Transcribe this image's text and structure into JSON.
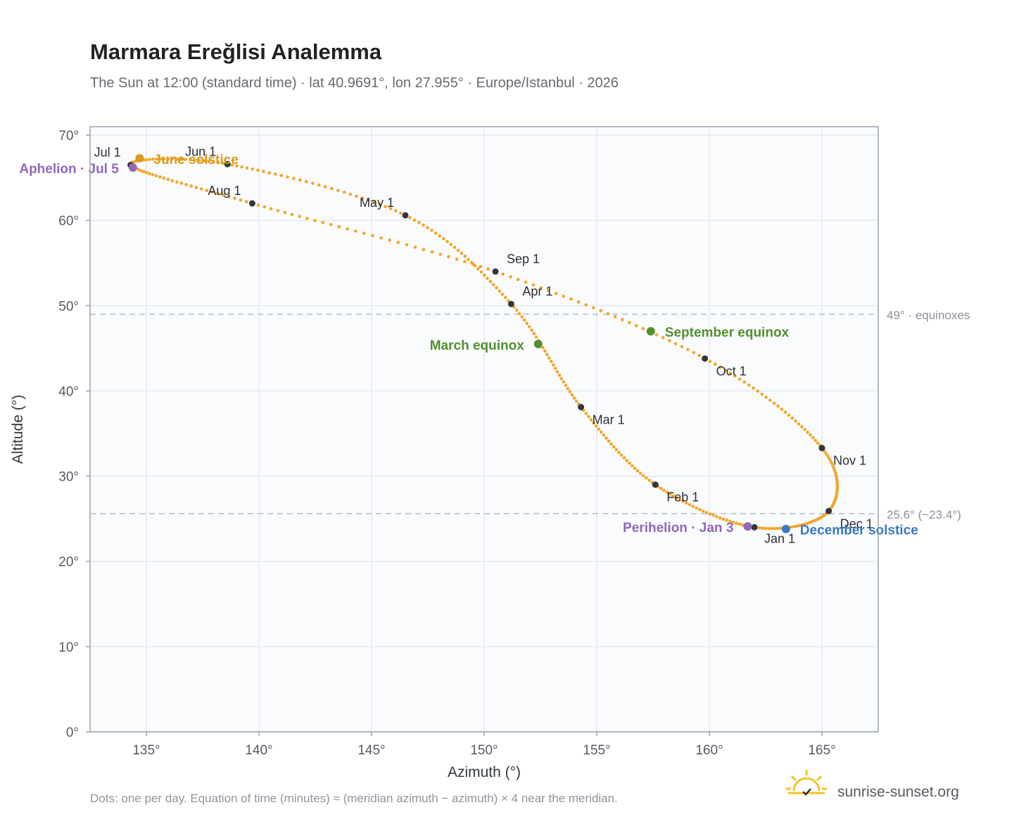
{
  "title": "Marmara Ereğlisi Analemma",
  "subtitle": "The Sun at 12:00 (standard time) · lat 40.9691°, lon 27.955° · Europe/Istanbul · 2026",
  "footnote": "Dots: one per day. Equation of time (minutes) ≈ (meridian azimuth − azimuth) × 4 near the meridian.",
  "brand": {
    "name": "sunrise-sunset.org",
    "icon": "sun-logo-icon"
  },
  "colors": {
    "path": "#f2a62a",
    "month": "#33363c",
    "june": "#dd9a1c",
    "december": "#3a78c0",
    "equinox": "#538f2e",
    "apsis": "#9267b8",
    "refline": "#b6bdc6",
    "grid": "#e6eaf0",
    "plot_bg": "#f9fbfd",
    "frame": "#9aa3ae"
  },
  "chart_data": {
    "type": "scatter",
    "title": "Marmara Ereğlisi Analemma",
    "xlabel": "Azimuth (°)",
    "ylabel": "Altitude (°)",
    "xlim": [
      132.5,
      167.5
    ],
    "ylim": [
      0,
      71
    ],
    "grid": true,
    "x_ticks": [
      135,
      140,
      145,
      150,
      155,
      160,
      165
    ],
    "x_tick_labels": [
      "135°",
      "140°",
      "145°",
      "150°",
      "155°",
      "160°",
      "165°"
    ],
    "y_ticks": [
      0,
      10,
      20,
      30,
      40,
      50,
      60,
      70
    ],
    "y_tick_labels": [
      "0°",
      "10°",
      "20°",
      "30°",
      "40°",
      "50°",
      "60°",
      "70°"
    ],
    "reference_lines": [
      {
        "y": 49.0,
        "label": "49° · equinoxes"
      },
      {
        "y": 25.6,
        "label": "25.6° (−23.4°)"
      }
    ],
    "months": [
      {
        "label": "Jan 1",
        "x": 162.0,
        "y": 24.0
      },
      {
        "label": "Feb 1",
        "x": 157.6,
        "y": 29.0
      },
      {
        "label": "Mar 1",
        "x": 154.3,
        "y": 38.1
      },
      {
        "label": "Apr 1",
        "x": 151.2,
        "y": 50.2
      },
      {
        "label": "May 1",
        "x": 146.5,
        "y": 60.6
      },
      {
        "label": "Jun 1",
        "x": 138.6,
        "y": 66.6
      },
      {
        "label": "Jul 1",
        "x": 134.3,
        "y": 66.5
      },
      {
        "label": "Aug 1",
        "x": 139.7,
        "y": 62.0
      },
      {
        "label": "Sep 1",
        "x": 150.5,
        "y": 54.0
      },
      {
        "label": "Oct 1",
        "x": 159.8,
        "y": 43.8
      },
      {
        "label": "Nov 1",
        "x": 165.0,
        "y": 33.3
      },
      {
        "label": "Dec 1",
        "x": 165.3,
        "y": 25.9
      }
    ],
    "events": [
      {
        "label": "June solstice",
        "x": 134.7,
        "y": 67.3,
        "color": "#dd9a1c"
      },
      {
        "label": "Aphelion · Jul 5",
        "x": 134.4,
        "y": 66.2,
        "color": "#9267b8"
      },
      {
        "label": "March equinox",
        "x": 152.4,
        "y": 45.5,
        "color": "#538f2e"
      },
      {
        "label": "September equinox",
        "x": 157.4,
        "y": 47.0,
        "color": "#538f2e"
      },
      {
        "label": "Perihelion · Jan 3",
        "x": 161.7,
        "y": 24.1,
        "color": "#9267b8"
      },
      {
        "label": "December solstice",
        "x": 163.4,
        "y": 23.8,
        "color": "#3a78c0"
      }
    ]
  }
}
